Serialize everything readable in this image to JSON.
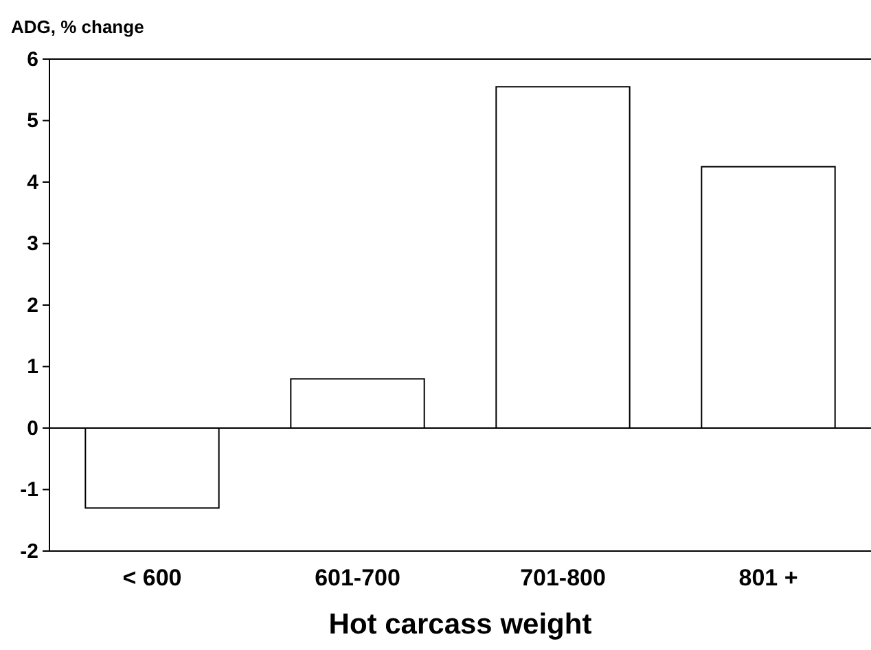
{
  "chart_data": {
    "type": "bar",
    "ylabel": "ADG, % change",
    "xlabel": "Hot carcass weight",
    "categories": [
      "< 600",
      "601-700",
      "701-800",
      "801 +"
    ],
    "values": [
      -1.3,
      0.8,
      5.55,
      4.25
    ],
    "color": "#ffffff",
    "ylim": [
      -2,
      6
    ],
    "yticks": [
      -2,
      -1,
      0,
      1,
      2,
      3,
      4,
      5,
      6
    ]
  }
}
